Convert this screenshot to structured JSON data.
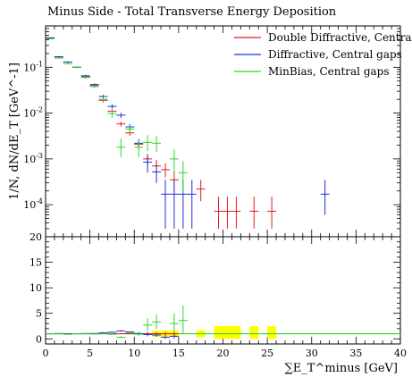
{
  "chart_data": [
    {
      "type": "scatter",
      "title": "Minus Side - Total Transverse Energy Deposition",
      "ylabel": "1/N, dN/dE_T [GeV^-1]",
      "xlabel": "",
      "yscale": "log",
      "xlim": [
        0,
        40
      ],
      "ylim": [
        2e-05,
        0.8
      ],
      "y_ticks": [
        {
          "value": 0.0001,
          "label": "10^-4"
        },
        {
          "value": 0.001,
          "label": "10^-3"
        },
        {
          "value": 0.01,
          "label": "10^-2"
        },
        {
          "value": 0.1,
          "label": "10^-1"
        }
      ],
      "legend": "top-right",
      "series": [
        {
          "name": "Double Diffractive, Central gaps",
          "color": "#e41a1c",
          "points": [
            {
              "x": 0.5,
              "y": 0.43,
              "xerr": 0.5,
              "ylo": 0.42,
              "yhi": 0.44
            },
            {
              "x": 1.5,
              "y": 0.16,
              "xerr": 0.5,
              "ylo": 0.155,
              "yhi": 0.165
            },
            {
              "x": 2.5,
              "y": 0.13,
              "xerr": 0.5,
              "ylo": 0.126,
              "yhi": 0.134
            },
            {
              "x": 3.5,
              "y": 0.1,
              "xerr": 0.5,
              "ylo": 0.096,
              "yhi": 0.104
            },
            {
              "x": 4.5,
              "y": 0.062,
              "xerr": 0.5,
              "ylo": 0.058,
              "yhi": 0.066
            },
            {
              "x": 5.5,
              "y": 0.04,
              "xerr": 0.5,
              "ylo": 0.037,
              "yhi": 0.043
            },
            {
              "x": 6.5,
              "y": 0.019,
              "xerr": 0.5,
              "ylo": 0.017,
              "yhi": 0.021
            },
            {
              "x": 7.5,
              "y": 0.011,
              "xerr": 0.5,
              "ylo": 0.0098,
              "yhi": 0.0122
            },
            {
              "x": 8.5,
              "y": 0.0058,
              "xerr": 0.5,
              "ylo": 0.0051,
              "yhi": 0.0065
            },
            {
              "x": 9.5,
              "y": 0.0037,
              "xerr": 0.5,
              "ylo": 0.0032,
              "yhi": 0.0042
            },
            {
              "x": 10.5,
              "y": 0.0021,
              "xerr": 0.5,
              "ylo": 0.0017,
              "yhi": 0.0025
            },
            {
              "x": 11.5,
              "y": 0.001,
              "xerr": 0.5,
              "ylo": 0.0007,
              "yhi": 0.0013
            },
            {
              "x": 12.5,
              "y": 0.0007,
              "xerr": 0.5,
              "ylo": 0.0005,
              "yhi": 0.00095
            },
            {
              "x": 13.5,
              "y": 0.00058,
              "xerr": 0.5,
              "ylo": 0.0004,
              "yhi": 0.0008
            },
            {
              "x": 14.5,
              "y": 0.00035,
              "xerr": 0.5,
              "ylo": 0.0002,
              "yhi": 0.00055
            },
            {
              "x": 17.5,
              "y": 0.00022,
              "xerr": 0.5,
              "ylo": 0.00012,
              "yhi": 0.00035
            },
            {
              "x": 19.5,
              "y": 7.2e-05,
              "xerr": 0.5,
              "ylo": 3e-05,
              "yhi": 0.00015
            },
            {
              "x": 20.5,
              "y": 7.2e-05,
              "xerr": 0.5,
              "ylo": 3e-05,
              "yhi": 0.00015
            },
            {
              "x": 21.5,
              "y": 7.2e-05,
              "xerr": 0.5,
              "ylo": 3e-05,
              "yhi": 0.00015
            },
            {
              "x": 23.5,
              "y": 7.2e-05,
              "xerr": 0.5,
              "ylo": 3e-05,
              "yhi": 0.00015
            },
            {
              "x": 25.5,
              "y": 7.2e-05,
              "xerr": 0.5,
              "ylo": 3e-05,
              "yhi": 0.00015
            }
          ]
        },
        {
          "name": "Diffractive, Central gaps",
          "color": "#1f2fd6",
          "points": [
            {
              "x": 0.5,
              "y": 0.44,
              "xerr": 0.5,
              "ylo": 0.43,
              "yhi": 0.45
            },
            {
              "x": 1.5,
              "y": 0.17,
              "xerr": 0.5,
              "ylo": 0.165,
              "yhi": 0.175
            },
            {
              "x": 2.5,
              "y": 0.13,
              "xerr": 0.5,
              "ylo": 0.126,
              "yhi": 0.134
            },
            {
              "x": 3.5,
              "y": 0.1,
              "xerr": 0.5,
              "ylo": 0.096,
              "yhi": 0.104
            },
            {
              "x": 4.5,
              "y": 0.065,
              "xerr": 0.5,
              "ylo": 0.061,
              "yhi": 0.069
            },
            {
              "x": 5.5,
              "y": 0.042,
              "xerr": 0.5,
              "ylo": 0.039,
              "yhi": 0.045
            },
            {
              "x": 6.5,
              "y": 0.023,
              "xerr": 0.5,
              "ylo": 0.021,
              "yhi": 0.025
            },
            {
              "x": 7.5,
              "y": 0.014,
              "xerr": 0.5,
              "ylo": 0.0125,
              "yhi": 0.0155
            },
            {
              "x": 8.5,
              "y": 0.009,
              "xerr": 0.5,
              "ylo": 0.0078,
              "yhi": 0.0102
            },
            {
              "x": 9.5,
              "y": 0.005,
              "xerr": 0.5,
              "ylo": 0.0042,
              "yhi": 0.0058
            },
            {
              "x": 10.5,
              "y": 0.0022,
              "xerr": 0.5,
              "ylo": 0.0017,
              "yhi": 0.0027
            },
            {
              "x": 11.5,
              "y": 0.00085,
              "xerr": 0.5,
              "ylo": 0.0005,
              "yhi": 0.0012
            },
            {
              "x": 12.5,
              "y": 0.00052,
              "xerr": 0.5,
              "ylo": 0.0003,
              "yhi": 0.00075
            },
            {
              "x": 13.5,
              "y": 0.00017,
              "xerr": 0.5,
              "ylo": 3e-05,
              "yhi": 0.00035
            },
            {
              "x": 14.5,
              "y": 0.00017,
              "xerr": 0.5,
              "ylo": 3e-05,
              "yhi": 0.00035
            },
            {
              "x": 15.5,
              "y": 0.00017,
              "xerr": 0.5,
              "ylo": 3e-05,
              "yhi": 0.00035
            },
            {
              "x": 16.5,
              "y": 0.00017,
              "xerr": 0.5,
              "ylo": 3e-05,
              "yhi": 0.00035
            },
            {
              "x": 31.5,
              "y": 0.00017,
              "xerr": 0.5,
              "ylo": 6e-05,
              "yhi": 0.00035
            }
          ]
        },
        {
          "name": "MinBias, Central gaps",
          "color": "#2bd82b",
          "points": [
            {
              "x": 0.5,
              "y": 0.42,
              "xerr": 0.5,
              "ylo": 0.41,
              "yhi": 0.43
            },
            {
              "x": 1.5,
              "y": 0.16,
              "xerr": 0.5,
              "ylo": 0.155,
              "yhi": 0.165
            },
            {
              "x": 2.5,
              "y": 0.12,
              "xerr": 0.5,
              "ylo": 0.116,
              "yhi": 0.124
            },
            {
              "x": 3.5,
              "y": 0.1,
              "xerr": 0.5,
              "ylo": 0.096,
              "yhi": 0.104
            },
            {
              "x": 4.5,
              "y": 0.06,
              "xerr": 0.5,
              "ylo": 0.056,
              "yhi": 0.064
            },
            {
              "x": 5.5,
              "y": 0.038,
              "xerr": 0.5,
              "ylo": 0.035,
              "yhi": 0.041
            },
            {
              "x": 6.5,
              "y": 0.02,
              "xerr": 0.5,
              "ylo": 0.018,
              "yhi": 0.022
            },
            {
              "x": 7.5,
              "y": 0.0098,
              "xerr": 0.5,
              "ylo": 0.008,
              "yhi": 0.0118
            },
            {
              "x": 8.5,
              "y": 0.0018,
              "xerr": 0.5,
              "ylo": 0.0011,
              "yhi": 0.0028
            },
            {
              "x": 9.5,
              "y": 0.0045,
              "xerr": 0.5,
              "ylo": 0.0036,
              "yhi": 0.0055
            },
            {
              "x": 10.5,
              "y": 0.0018,
              "xerr": 0.5,
              "ylo": 0.0011,
              "yhi": 0.0028
            },
            {
              "x": 11.5,
              "y": 0.0023,
              "xerr": 0.5,
              "ylo": 0.0015,
              "yhi": 0.0033
            },
            {
              "x": 12.5,
              "y": 0.0022,
              "xerr": 0.5,
              "ylo": 0.0014,
              "yhi": 0.0032
            },
            {
              "x": 14.5,
              "y": 0.001,
              "xerr": 0.5,
              "ylo": 0.0005,
              "yhi": 0.0016
            },
            {
              "x": 15.5,
              "y": 0.0005,
              "xerr": 0.5,
              "ylo": 0.00018,
              "yhi": 0.0009
            }
          ]
        }
      ]
    },
    {
      "type": "scatter",
      "title": "",
      "xlabel": "∑E_T^minus [GeV]",
      "ylabel": "",
      "xlim": [
        0,
        40
      ],
      "ylim": [
        -1,
        20
      ],
      "x_ticks": [
        0,
        5,
        10,
        15,
        20,
        25,
        30,
        35,
        40
      ],
      "y_ticks": [
        0,
        5,
        10,
        15,
        20
      ],
      "reference": {
        "y": 1,
        "color": "#2bd82b"
      },
      "bands": {
        "color": "#ffff00",
        "items": [
          {
            "x": 12.5,
            "ylo": 0.4,
            "yhi": 1.6
          },
          {
            "x": 13.5,
            "ylo": 0.4,
            "yhi": 1.6
          },
          {
            "x": 14.5,
            "ylo": 0.4,
            "yhi": 1.6
          },
          {
            "x": 17.5,
            "ylo": 0.3,
            "yhi": 1.7
          },
          {
            "x": 19.5,
            "ylo": 0.0,
            "yhi": 2.5
          },
          {
            "x": 20.5,
            "ylo": 0.0,
            "yhi": 2.5
          },
          {
            "x": 21.5,
            "ylo": 0.0,
            "yhi": 2.5
          },
          {
            "x": 23.5,
            "ylo": 0.0,
            "yhi": 2.5
          },
          {
            "x": 25.5,
            "ylo": 0.0,
            "yhi": 2.5
          }
        ]
      },
      "series": [
        {
          "name": "Double Diffractive, Central gaps",
          "color": "#e41a1c",
          "points": [
            {
              "x": 0.5,
              "y": 1.0,
              "xerr": 0.5,
              "ylo": 1.0,
              "yhi": 1.0
            },
            {
              "x": 1.5,
              "y": 1.0,
              "xerr": 0.5,
              "ylo": 1.0,
              "yhi": 1.0
            },
            {
              "x": 2.5,
              "y": 1.0,
              "xerr": 0.5,
              "ylo": 1.0,
              "yhi": 1.0
            },
            {
              "x": 3.5,
              "y": 1.0,
              "xerr": 0.5,
              "ylo": 1.0,
              "yhi": 1.0
            },
            {
              "x": 4.5,
              "y": 1.0,
              "xerr": 0.5,
              "ylo": 1.0,
              "yhi": 1.0
            },
            {
              "x": 5.5,
              "y": 1.0,
              "xerr": 0.5,
              "ylo": 1.0,
              "yhi": 1.0
            },
            {
              "x": 6.5,
              "y": 1.0,
              "xerr": 0.5,
              "ylo": 1.0,
              "yhi": 1.0
            },
            {
              "x": 7.5,
              "y": 1.0,
              "xerr": 0.5,
              "ylo": 0.9,
              "yhi": 1.1
            },
            {
              "x": 8.5,
              "y": 1.0,
              "xerr": 0.5,
              "ylo": 0.9,
              "yhi": 1.1
            },
            {
              "x": 9.5,
              "y": 1.0,
              "xerr": 0.5,
              "ylo": 0.9,
              "yhi": 1.1
            },
            {
              "x": 10.5,
              "y": 1.0,
              "xerr": 0.5,
              "ylo": 0.8,
              "yhi": 1.2
            },
            {
              "x": 11.5,
              "y": 1.0,
              "xerr": 0.5,
              "ylo": 0.7,
              "yhi": 1.3
            },
            {
              "x": 12.5,
              "y": 1.0,
              "xerr": 0.5,
              "ylo": 0.7,
              "yhi": 1.3
            },
            {
              "x": 13.5,
              "y": 1.0,
              "xerr": 0.5,
              "ylo": 0.6,
              "yhi": 1.4
            },
            {
              "x": 14.5,
              "y": 1.0,
              "xerr": 0.5,
              "ylo": 0.6,
              "yhi": 1.4
            }
          ]
        },
        {
          "name": "Diffractive, Central gaps",
          "color": "#1f2fd6",
          "points": [
            {
              "x": 0.5,
              "y": 1.0,
              "xerr": 0.5,
              "ylo": 1.0,
              "yhi": 1.0
            },
            {
              "x": 1.5,
              "y": 1.05,
              "xerr": 0.5,
              "ylo": 1.0,
              "yhi": 1.1
            },
            {
              "x": 2.5,
              "y": 1.0,
              "xerr": 0.5,
              "ylo": 1.0,
              "yhi": 1.0
            },
            {
              "x": 3.5,
              "y": 1.0,
              "xerr": 0.5,
              "ylo": 1.0,
              "yhi": 1.0
            },
            {
              "x": 4.5,
              "y": 1.05,
              "xerr": 0.5,
              "ylo": 1.0,
              "yhi": 1.1
            },
            {
              "x": 5.5,
              "y": 1.05,
              "xerr": 0.5,
              "ylo": 1.0,
              "yhi": 1.1
            },
            {
              "x": 6.5,
              "y": 1.2,
              "xerr": 0.5,
              "ylo": 1.1,
              "yhi": 1.3
            },
            {
              "x": 7.5,
              "y": 1.3,
              "xerr": 0.5,
              "ylo": 1.2,
              "yhi": 1.4
            },
            {
              "x": 8.5,
              "y": 1.55,
              "xerr": 0.5,
              "ylo": 1.4,
              "yhi": 1.7
            },
            {
              "x": 9.5,
              "y": 1.35,
              "xerr": 0.5,
              "ylo": 1.2,
              "yhi": 1.5
            },
            {
              "x": 10.5,
              "y": 1.05,
              "xerr": 0.5,
              "ylo": 0.8,
              "yhi": 1.3
            },
            {
              "x": 11.5,
              "y": 0.85,
              "xerr": 0.5,
              "ylo": 0.5,
              "yhi": 1.2
            },
            {
              "x": 12.5,
              "y": 0.75,
              "xerr": 0.5,
              "ylo": 0.4,
              "yhi": 1.1
            },
            {
              "x": 13.5,
              "y": 0.3,
              "xerr": 0.5,
              "ylo": 0.0,
              "yhi": 0.7
            },
            {
              "x": 14.5,
              "y": 0.5,
              "xerr": 0.5,
              "ylo": 0.1,
              "yhi": 1.0
            }
          ]
        },
        {
          "name": "MinBias, Central gaps",
          "color": "#2bd82b",
          "points": [
            {
              "x": 0.5,
              "y": 1.0,
              "xerr": 0.5,
              "ylo": 1.0,
              "yhi": 1.0
            },
            {
              "x": 1.5,
              "y": 1.0,
              "xerr": 0.5,
              "ylo": 1.0,
              "yhi": 1.0
            },
            {
              "x": 2.5,
              "y": 0.9,
              "xerr": 0.5,
              "ylo": 0.9,
              "yhi": 0.9
            },
            {
              "x": 3.5,
              "y": 1.0,
              "xerr": 0.5,
              "ylo": 1.0,
              "yhi": 1.0
            },
            {
              "x": 4.5,
              "y": 1.0,
              "xerr": 0.5,
              "ylo": 1.0,
              "yhi": 1.0
            },
            {
              "x": 5.5,
              "y": 0.95,
              "xerr": 0.5,
              "ylo": 0.9,
              "yhi": 1.0
            },
            {
              "x": 6.5,
              "y": 1.05,
              "xerr": 0.5,
              "ylo": 1.0,
              "yhi": 1.1
            },
            {
              "x": 7.5,
              "y": 0.9,
              "xerr": 0.5,
              "ylo": 0.8,
              "yhi": 1.0
            },
            {
              "x": 8.5,
              "y": 0.3,
              "xerr": 0.5,
              "ylo": 0.2,
              "yhi": 0.5
            },
            {
              "x": 9.5,
              "y": 1.2,
              "xerr": 0.5,
              "ylo": 1.0,
              "yhi": 1.4
            },
            {
              "x": 10.5,
              "y": 0.9,
              "xerr": 0.5,
              "ylo": 0.6,
              "yhi": 1.2
            },
            {
              "x": 11.5,
              "y": 2.7,
              "xerr": 0.5,
              "ylo": 1.5,
              "yhi": 4.0
            },
            {
              "x": 12.5,
              "y": 3.3,
              "xerr": 0.5,
              "ylo": 2.0,
              "yhi": 4.8
            },
            {
              "x": 14.5,
              "y": 3.0,
              "xerr": 0.5,
              "ylo": 1.5,
              "yhi": 5.0
            },
            {
              "x": 15.5,
              "y": 3.6,
              "xerr": 0.5,
              "ylo": 1.0,
              "yhi": 6.5
            }
          ]
        }
      ]
    }
  ]
}
